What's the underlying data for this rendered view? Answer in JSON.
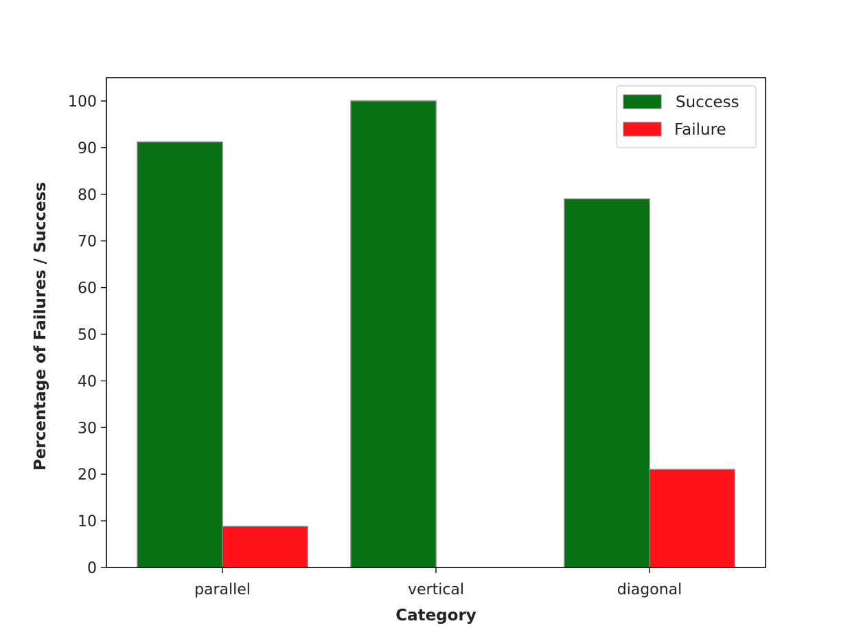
{
  "chart_data": {
    "type": "bar",
    "title": "",
    "xlabel": "Category",
    "ylabel": "Percentage of Failures / Success",
    "categories": [
      "parallel",
      "vertical",
      "diagonal"
    ],
    "series": [
      {
        "name": "Success",
        "color": "#067214",
        "values": [
          91.2,
          100,
          79.0
        ]
      },
      {
        "name": "Failure",
        "color": "#ff1318",
        "values": [
          8.8,
          0,
          21.0
        ]
      }
    ],
    "ylim": [
      0,
      105
    ],
    "yticks": [
      0,
      10,
      20,
      30,
      40,
      50,
      60,
      70,
      80,
      90,
      100
    ],
    "legend": {
      "placement": "top-right",
      "entries": [
        "Success",
        "Failure"
      ]
    },
    "grid": false,
    "bar_edge_color": "#808080"
  }
}
